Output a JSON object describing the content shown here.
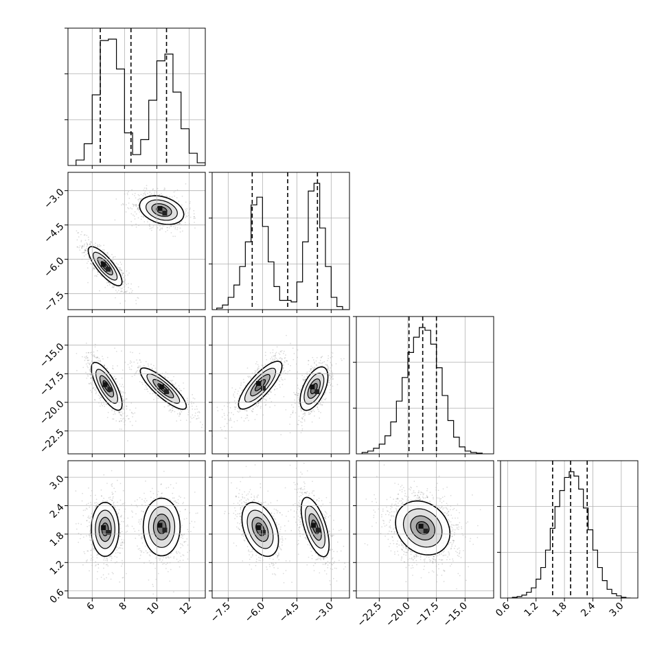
{
  "chart_data": {
    "type": "corner",
    "n_params": 4,
    "grid": true,
    "parameters": [
      {
        "range": [
          4.5,
          13.0
        ],
        "ticks": [
          6,
          8,
          10,
          12
        ],
        "tick_labels": [
          "6",
          "8",
          "10",
          "12"
        ],
        "quantiles": [
          6.5,
          8.4,
          10.6
        ]
      },
      {
        "range": [
          -8.2,
          -2.2
        ],
        "ticks": [
          -7.5,
          -6.0,
          -4.5,
          -3.0
        ],
        "tick_labels": [
          "−7.5",
          "−6.0",
          "−4.5",
          "−3.0"
        ],
        "quantiles": [
          -6.45,
          -4.9,
          -3.6
        ]
      },
      {
        "range": [
          -24.5,
          -12.5
        ],
        "ticks": [
          -22.5,
          -20.0,
          -17.5,
          -15.0
        ],
        "tick_labels": [
          "−22.5",
          "−20.0",
          "−17.5",
          "−15.0"
        ],
        "quantiles": [
          -19.9,
          -18.7,
          -17.5
        ]
      },
      {
        "range": [
          0.45,
          3.35
        ],
        "ticks": [
          0.6,
          1.2,
          1.8,
          2.4,
          3.0
        ],
        "tick_labels": [
          "0.6",
          "1.2",
          "1.8",
          "2.4",
          "3.0"
        ],
        "quantiles": [
          1.55,
          1.93,
          2.28
        ]
      }
    ],
    "histograms": [
      {
        "bins": [
          5.0,
          5.5,
          6.0,
          6.5,
          7.0,
          7.5,
          8.0,
          8.5,
          9.0,
          9.5,
          10.0,
          10.5,
          11.0,
          11.5,
          12.0,
          12.5,
          13.0
        ],
        "counts": [
          0.04,
          0.16,
          0.52,
          0.92,
          0.93,
          0.71,
          0.24,
          0.08,
          0.19,
          0.48,
          0.77,
          0.82,
          0.54,
          0.27,
          0.09,
          0.02
        ]
      },
      {
        "bins": [
          -8.0,
          -7.75,
          -7.5,
          -7.25,
          -7.0,
          -6.75,
          -6.5,
          -6.25,
          -6.0,
          -5.75,
          -5.5,
          -5.25,
          -5.0,
          -4.75,
          -4.5,
          -4.25,
          -4.0,
          -3.75,
          -3.5,
          -3.25,
          -3.0,
          -2.75,
          -2.5,
          -2.25
        ],
        "counts": [
          0.01,
          0.03,
          0.08,
          0.16,
          0.28,
          0.44,
          0.68,
          0.73,
          0.54,
          0.31,
          0.15,
          0.06,
          0.06,
          0.05,
          0.18,
          0.44,
          0.77,
          0.82,
          0.53,
          0.28,
          0.08,
          0.02,
          0.0
        ]
      },
      {
        "bins": [
          -24.0,
          -23.5,
          -23.0,
          -22.5,
          -22.0,
          -21.5,
          -21.0,
          -20.5,
          -20.0,
          -19.5,
          -19.0,
          -18.5,
          -18.0,
          -17.5,
          -17.0,
          -16.5,
          -16.0,
          -15.5,
          -15.0,
          -14.5,
          -14.0,
          -13.5
        ],
        "counts": [
          0.01,
          0.02,
          0.04,
          0.07,
          0.13,
          0.23,
          0.38,
          0.55,
          0.73,
          0.84,
          0.91,
          0.89,
          0.79,
          0.62,
          0.42,
          0.24,
          0.12,
          0.05,
          0.02,
          0.01,
          0.005
        ]
      },
      {
        "bins": [
          0.6,
          0.7,
          0.8,
          0.9,
          1.0,
          1.1,
          1.2,
          1.3,
          1.4,
          1.5,
          1.6,
          1.7,
          1.8,
          1.9,
          2.0,
          2.1,
          2.2,
          2.3,
          2.4,
          2.5,
          2.6,
          2.7,
          2.8,
          2.9,
          3.0,
          3.1,
          3.2
        ],
        "counts": [
          0.0,
          0.005,
          0.01,
          0.02,
          0.04,
          0.07,
          0.13,
          0.21,
          0.33,
          0.48,
          0.63,
          0.74,
          0.83,
          0.87,
          0.84,
          0.75,
          0.62,
          0.47,
          0.33,
          0.21,
          0.12,
          0.06,
          0.03,
          0.015,
          0.005,
          0.0
        ]
      }
    ],
    "pair_modes": [
      {
        "i": 1,
        "j": 0,
        "modes": [
          {
            "mx": 6.8,
            "my": -6.3,
            "sx": 0.55,
            "sy": 0.45,
            "rho": -0.8,
            "w": 0.53
          },
          {
            "mx": 10.3,
            "my": -3.85,
            "sx": 0.72,
            "sy": 0.33,
            "rho": -0.3,
            "w": 0.47
          }
        ]
      },
      {
        "i": 2,
        "j": 0,
        "modes": [
          {
            "mx": 6.9,
            "my": -18.6,
            "sx": 0.5,
            "sy": 1.1,
            "rho": -0.75,
            "w": 0.53
          },
          {
            "mx": 10.4,
            "my": -18.8,
            "sx": 0.75,
            "sy": 0.95,
            "rho": -0.85,
            "w": 0.47
          }
        ]
      },
      {
        "i": 2,
        "j": 1,
        "modes": [
          {
            "mx": -6.1,
            "my": -18.5,
            "sx": 0.5,
            "sy": 1.1,
            "rho": 0.8,
            "w": 0.53
          },
          {
            "mx": -3.75,
            "my": -18.8,
            "sx": 0.32,
            "sy": 1.0,
            "rho": 0.55,
            "w": 0.47
          }
        ]
      },
      {
        "i": 3,
        "j": 0,
        "modes": [
          {
            "mx": 6.8,
            "my": 1.9,
            "sx": 0.45,
            "sy": 0.3,
            "rho": 0.0,
            "w": 0.53
          },
          {
            "mx": 10.3,
            "my": 1.95,
            "sx": 0.6,
            "sy": 0.32,
            "rho": 0.0,
            "w": 0.47
          }
        ]
      },
      {
        "i": 3,
        "j": 1,
        "modes": [
          {
            "mx": -6.1,
            "my": 1.9,
            "sx": 0.42,
            "sy": 0.3,
            "rho": -0.4,
            "w": 0.53
          },
          {
            "mx": -3.7,
            "my": 1.95,
            "sx": 0.32,
            "sy": 0.33,
            "rho": -0.6,
            "w": 0.47
          }
        ]
      },
      {
        "i": 3,
        "j": 2,
        "modes": [
          {
            "mx": -18.7,
            "my": 1.93,
            "sx": 1.25,
            "sy": 0.3,
            "rho": -0.2,
            "w": 1.0
          }
        ]
      }
    ]
  }
}
